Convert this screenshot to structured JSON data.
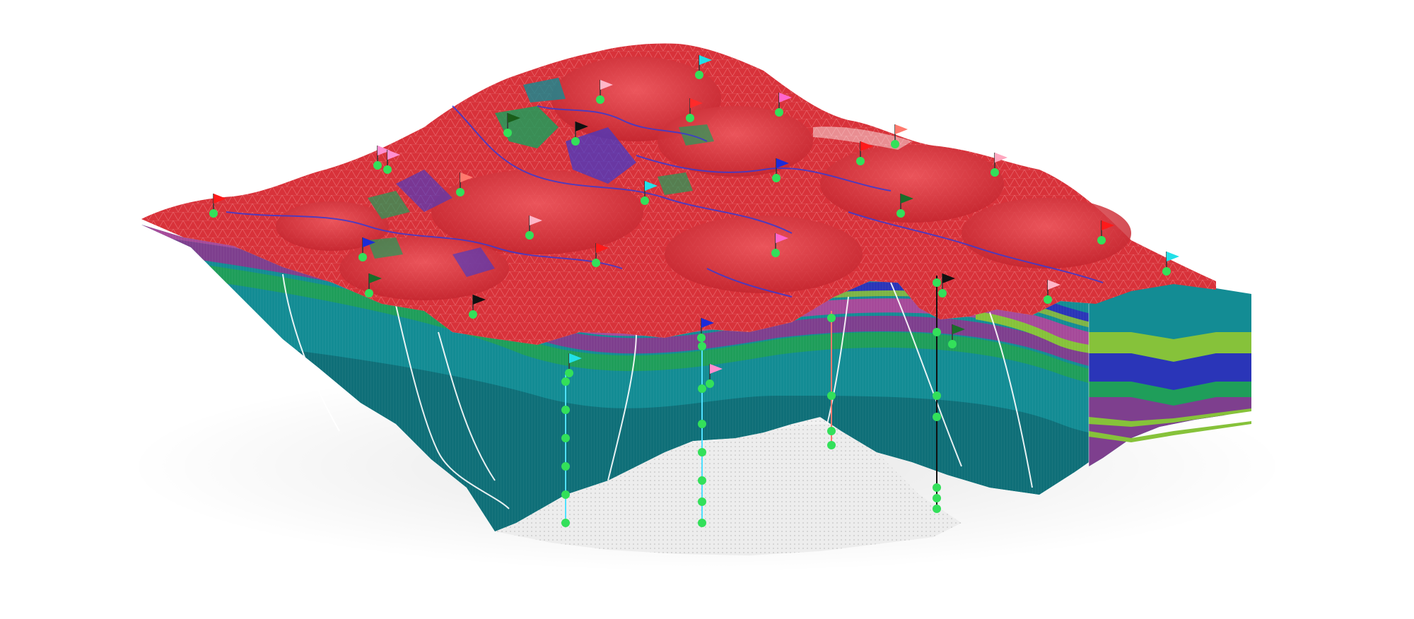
{
  "colors": {
    "surface": "#d8323a",
    "surface_light": "#ee5a60",
    "surface_dark": "#b01f28",
    "mesh": "#f7a3a6",
    "river": "#3a3ad0",
    "teal": "#138c94",
    "teal_dark": "#0f6f78",
    "green": "#1f9e5a",
    "lime": "#86c23a",
    "blue": "#2a35b8",
    "purple": "#7e3f8e",
    "magenta": "#a64a9a",
    "basement": "#e9e9e9",
    "basement_dots": "#b7b7b7",
    "fault": "#ffffff",
    "well_marker": "#33e05a"
  },
  "icons": {
    "well": "flag-icon",
    "sample": "dot-icon"
  },
  "flags": [
    {
      "color": "#ff1a1a"
    },
    {
      "color": "#ff8fd0"
    },
    {
      "color": "#1a5e1a"
    },
    {
      "color": "#111111"
    },
    {
      "color": "#ffb6c8"
    },
    {
      "color": "#22e0e8"
    },
    {
      "color": "#ff2a2a"
    },
    {
      "color": "#ff66cc"
    },
    {
      "color": "#ff7a6e"
    },
    {
      "color": "#1c2bd8"
    },
    {
      "color": "#ffa8c0"
    },
    {
      "color": "#1a6e2a"
    },
    {
      "color": "#ff1a1a"
    },
    {
      "color": "#22e0e8"
    },
    {
      "color": "#1c2bd8"
    },
    {
      "color": "#1a6e2a"
    },
    {
      "color": "#111111"
    },
    {
      "color": "#ff7a6e"
    },
    {
      "color": "#ffb6c8"
    },
    {
      "color": "#ff66cc"
    },
    {
      "color": "#1c2bd8"
    },
    {
      "color": "#22e0e8"
    },
    {
      "color": "#ff8fd0"
    },
    {
      "color": "#111111"
    },
    {
      "color": "#1a6e2a"
    },
    {
      "color": "#ffb6c8"
    },
    {
      "color": "#22e0e8"
    },
    {
      "color": "#ff1a1a"
    },
    {
      "color": "#ff8fd0"
    },
    {
      "color": "#ff1a1a"
    }
  ],
  "wells": [
    {
      "color": "#4fe0ff"
    },
    {
      "color": "#4fe0ff"
    },
    {
      "color": "#ff7a6e"
    },
    {
      "color": "#111111"
    }
  ]
}
